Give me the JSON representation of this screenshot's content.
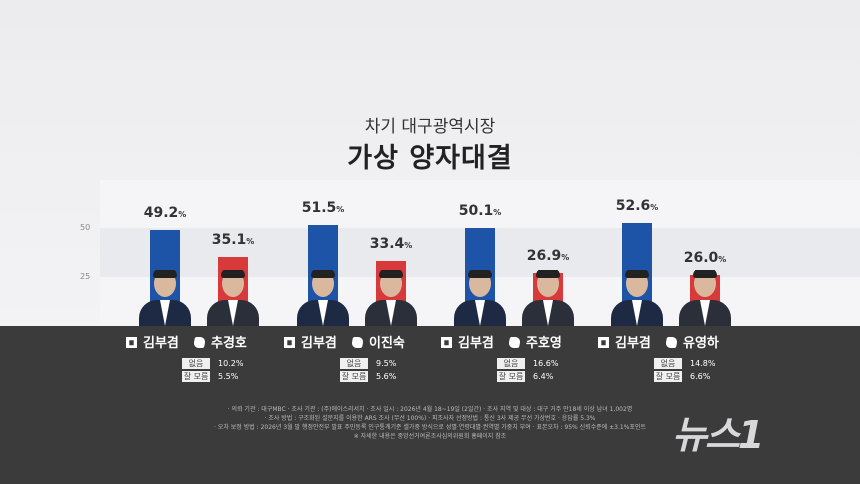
{
  "header": {
    "subtitle": "차기 대구광역시장",
    "title": "가상 양자대결"
  },
  "chart_data": {
    "type": "bar",
    "yticks": [
      25,
      50
    ],
    "ylim": [
      0,
      60
    ],
    "grid": false,
    "colors": {
      "blue": "#1d54a8",
      "red": "#d8393a"
    },
    "unit": "%",
    "matchups": [
      {
        "a": {
          "name": "김부겸",
          "value": 49.2
        },
        "b": {
          "name": "추경호",
          "value": 35.1
        },
        "none_label": "없음",
        "none": "10.2%",
        "dk_label": "잘 모름",
        "dk": "5.5%"
      },
      {
        "a": {
          "name": "김부겸",
          "value": 51.5
        },
        "b": {
          "name": "이진숙",
          "value": 33.4
        },
        "none_label": "없음",
        "none": "9.5%",
        "dk_label": "잘 모름",
        "dk": "5.6%"
      },
      {
        "a": {
          "name": "김부겸",
          "value": 50.1
        },
        "b": {
          "name": "주호영",
          "value": 26.9
        },
        "none_label": "없음",
        "none": "16.6%",
        "dk_label": "잘 모름",
        "dk": "6.4%"
      },
      {
        "a": {
          "name": "김부겸",
          "value": 52.6
        },
        "b": {
          "name": "유영하",
          "value": 26.0
        },
        "none_label": "없음",
        "none": "14.8%",
        "dk_label": "잘 모름",
        "dk": "6.6%"
      }
    ]
  },
  "footnotes": [
    "· 의뢰 기관 : 대구MBC  · 조사 기관 : (주)에이스리서치  · 조사 일시 : 2026년 4월 18~19일 (2일간)  · 조사 지역 및 대상 : 대구 거주 만18세 이상 남녀 1,002명",
    "· 조사 방법 : 구조화된 설문지를 이용한 ARS 조사 (무선 100%)  · 피조사자 선정방법 : 통신 3사 제공 무선 가상번호  · 응답률 5.3%",
    "· 오차 보정 방법 : 2026년 3월 말 행정안전부 발표 주민등록 인구통계기준 셀가중 방식으로 성별·연령대별·권역별 가중치 부여  · 표본오차 : 95% 신뢰수준에 ±3.1%포인트",
    "※ 자세한 내용은 중앙선거여론조사심의위원회 홈페이지 참조"
  ],
  "logo": "뉴스1"
}
